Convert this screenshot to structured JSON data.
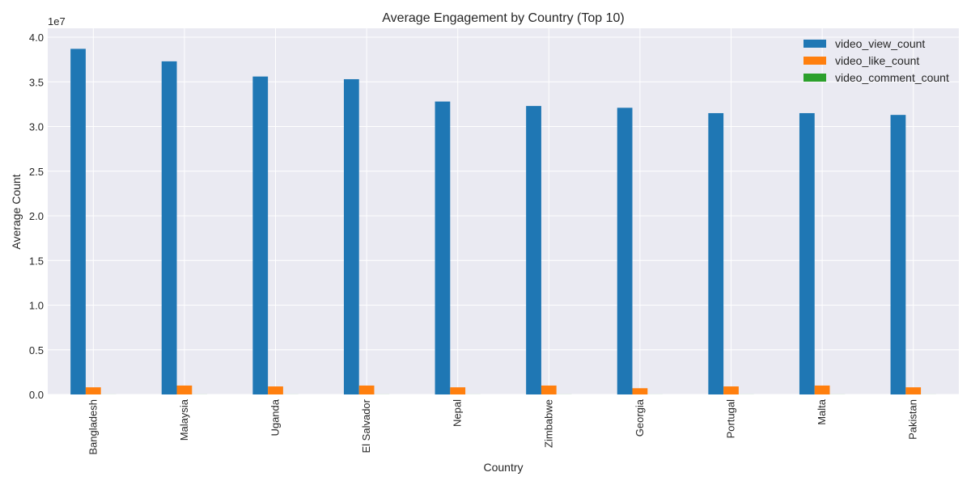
{
  "chart_data": {
    "type": "bar",
    "title": "Average Engagement by Country (Top 10)",
    "xlabel": "Country",
    "ylabel": "Average Count",
    "offset_label": "1e7",
    "categories": [
      "Bangladesh",
      "Malaysia",
      "Uganda",
      "El Salvador",
      "Nepal",
      "Zimbabwe",
      "Georgia",
      "Portugal",
      "Malta",
      "Pakistan"
    ],
    "series": [
      {
        "name": "video_view_count",
        "color": "#1f77b4",
        "values": [
          38700000,
          37300000,
          35600000,
          35300000,
          32800000,
          32300000,
          32100000,
          31500000,
          31500000,
          31300000
        ]
      },
      {
        "name": "video_like_count",
        "color": "#ff7f0e",
        "values": [
          800000,
          1000000,
          900000,
          1000000,
          800000,
          1000000,
          700000,
          900000,
          1000000,
          800000
        ]
      },
      {
        "name": "video_comment_count",
        "color": "#2ca02c",
        "values": [
          5000,
          6000,
          5500,
          6000,
          5000,
          6000,
          4500,
          5500,
          6000,
          5000
        ]
      }
    ],
    "ylim": [
      0,
      41000000
    ],
    "yticks": [
      0,
      5000000,
      10000000,
      15000000,
      20000000,
      25000000,
      30000000,
      35000000,
      40000000
    ],
    "ytick_labels": [
      "0.0",
      "0.5",
      "1.0",
      "1.5",
      "2.0",
      "2.5",
      "3.0",
      "3.5",
      "4.0"
    ],
    "grid": true,
    "legend_position": "top-right",
    "background": "#eaeaf2"
  }
}
